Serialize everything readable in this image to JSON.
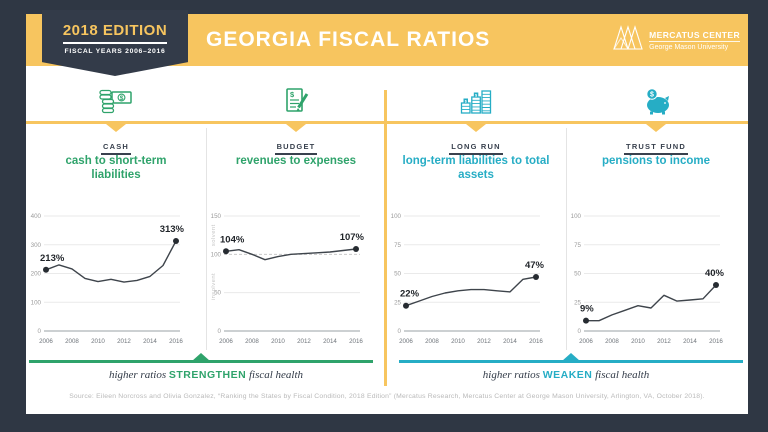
{
  "theme": {
    "navy": "#2F3744",
    "yellow": "#F7C55F",
    "green": "#2FA36B",
    "teal": "#26ADC5"
  },
  "header": {
    "badge_title": "2018 EDITION",
    "badge_subtitle": "FISCAL YEARS 2006–2016",
    "title": "GEORGIA FISCAL RATIOS",
    "logo_name": "MERCATUS CENTER",
    "logo_sub": "George Mason University"
  },
  "columns": [
    {
      "label": "CASH",
      "icon": "cash-money-icon",
      "title": "cash to short-term liabilities",
      "accent": "#2FA36B"
    },
    {
      "label": "BUDGET",
      "icon": "budget-document-icon",
      "title": "revenues to expenses",
      "accent": "#2FA36B"
    },
    {
      "label": "LONG RUN",
      "icon": "long-run-bars-icon",
      "title": "long-term liabilities to total assets",
      "accent": "#26ADC5"
    },
    {
      "label": "TRUST FUND",
      "icon": "trust-fund-piggy-icon",
      "title": "pensions to income",
      "accent": "#26ADC5"
    }
  ],
  "footer": {
    "left_pre": "higher ratios",
    "left_word": "STRENGTHEN",
    "left_post": "fiscal health",
    "right_pre": "higher ratios",
    "right_word": "WEAKEN",
    "right_post": "fiscal health"
  },
  "source": "Source: Eileen Norcross and Olivia Gonzalez, “Ranking the States by Fiscal Condition, 2018 Edition” (Mercatus Research, Mercatus Center at George Mason University, Arlington, VA, October 2018).",
  "chart_data": [
    {
      "type": "line",
      "title": "cash to short-term liabilities",
      "section": "CASH",
      "x": [
        2006,
        2007,
        2008,
        2009,
        2010,
        2011,
        2012,
        2013,
        2014,
        2015,
        2016
      ],
      "values": [
        213,
        230,
        216,
        183,
        172,
        180,
        170,
        176,
        190,
        228,
        313
      ],
      "ymax": 400,
      "yticks": [
        0,
        100,
        200,
        300,
        400
      ],
      "xticks": [
        2006,
        2008,
        2010,
        2012,
        2014,
        2016
      ],
      "first_label": "213%",
      "last_label": "313%",
      "grid": true,
      "legend": "none"
    },
    {
      "type": "line",
      "title": "revenues to expenses",
      "section": "BUDGET",
      "x": [
        2006,
        2007,
        2008,
        2009,
        2010,
        2011,
        2012,
        2013,
        2014,
        2015,
        2016
      ],
      "values": [
        104,
        106,
        100,
        93,
        97,
        100,
        101,
        102,
        103,
        105,
        107
      ],
      "ymax": 150,
      "yticks": [
        0,
        50,
        100,
        150
      ],
      "xticks": [
        2006,
        2008,
        2010,
        2012,
        2014,
        2016
      ],
      "ref_line": 100,
      "side_labels": [
        "solvent",
        "insolvent"
      ],
      "first_label": "104%",
      "last_label": "107%",
      "grid": true,
      "legend": "none"
    },
    {
      "type": "line",
      "title": "long-term liabilities to total assets",
      "section": "LONG RUN",
      "x": [
        2006,
        2007,
        2008,
        2009,
        2010,
        2011,
        2012,
        2013,
        2014,
        2015,
        2016
      ],
      "values": [
        22,
        26,
        30,
        33,
        35,
        36,
        36,
        35,
        34,
        45,
        47
      ],
      "ymax": 100,
      "yticks": [
        0,
        25,
        50,
        75,
        100
      ],
      "xticks": [
        2006,
        2008,
        2010,
        2012,
        2014,
        2016
      ],
      "first_label": "22%",
      "last_label": "47%",
      "grid": true,
      "legend": "none"
    },
    {
      "type": "line",
      "title": "pensions to income",
      "section": "TRUST FUND",
      "x": [
        2006,
        2007,
        2008,
        2009,
        2010,
        2011,
        2012,
        2013,
        2014,
        2015,
        2016
      ],
      "values": [
        9,
        9,
        14,
        18,
        22,
        20,
        31,
        26,
        27,
        28,
        40
      ],
      "ymax": 100,
      "yticks": [
        0,
        25,
        50,
        75,
        100
      ],
      "xticks": [
        2006,
        2008,
        2010,
        2012,
        2014,
        2016
      ],
      "first_label": "9%",
      "last_label": "40%",
      "grid": true,
      "legend": "none"
    }
  ]
}
